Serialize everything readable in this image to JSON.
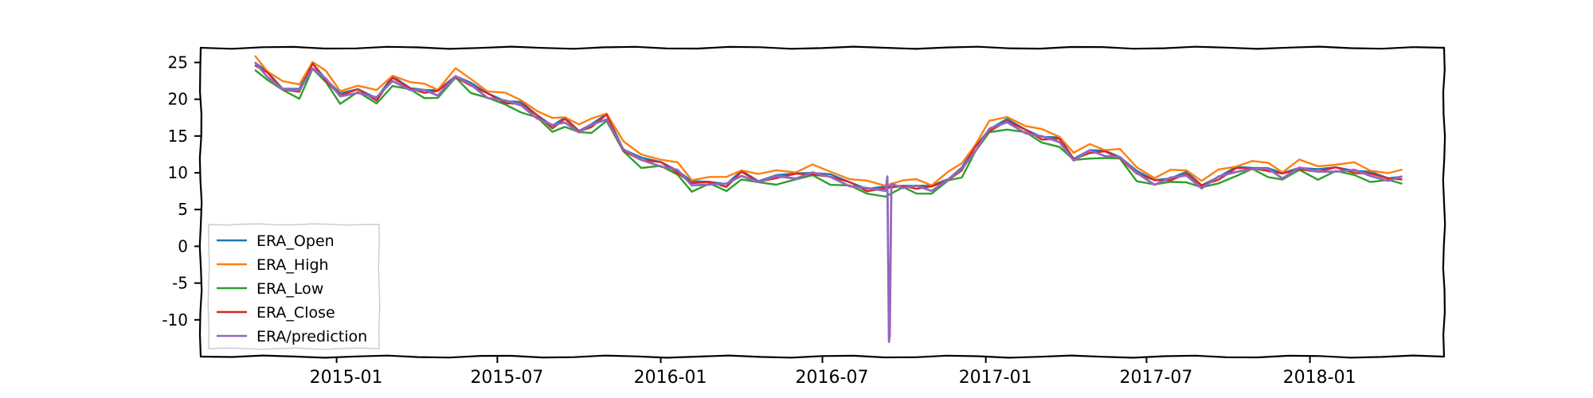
{
  "chart_data": {
    "type": "line",
    "style": "xkcd-like wobbly frame",
    "title": "",
    "xlabel": "",
    "ylabel": "",
    "x_axis": {
      "type": "date",
      "range": [
        "2014-08-01",
        "2018-06-01"
      ],
      "ticks": [
        {
          "value": "2015-01-01",
          "label": "2015-01"
        },
        {
          "value": "2015-07-01",
          "label": "2015-07"
        },
        {
          "value": "2016-01-01",
          "label": "2016-01"
        },
        {
          "value": "2016-07-01",
          "label": "2016-07"
        },
        {
          "value": "2017-01-01",
          "label": "2017-01"
        },
        {
          "value": "2017-07-01",
          "label": "2017-07"
        },
        {
          "value": "2018-01-01",
          "label": "2018-01"
        }
      ]
    },
    "y_axis": {
      "range": [
        -15,
        27
      ],
      "ticks": [
        {
          "value": 25,
          "label": "25"
        },
        {
          "value": 20,
          "label": "20"
        },
        {
          "value": 15,
          "label": "15"
        },
        {
          "value": 10,
          "label": "10"
        },
        {
          "value": 5,
          "label": "5"
        },
        {
          "value": 0,
          "label": "0"
        },
        {
          "value": -5,
          "label": "-5"
        },
        {
          "value": -10,
          "label": "-10"
        }
      ]
    },
    "grid": false,
    "legend": {
      "position": "lower-left",
      "entries": [
        {
          "name": "ERA_Open",
          "color": "#1f77b4"
        },
        {
          "name": "ERA_High",
          "color": "#ff7f0e"
        },
        {
          "name": "ERA_Low",
          "color": "#2ca02c"
        },
        {
          "name": "ERA_Close",
          "color": "#d62728"
        },
        {
          "name": "ERA/prediction",
          "color": "#9467bd"
        }
      ]
    },
    "base_series": {
      "x": [
        "2014-10-01",
        "2014-10-15",
        "2014-11-01",
        "2014-11-20",
        "2014-12-05",
        "2014-12-20",
        "2015-01-05",
        "2015-01-25",
        "2015-02-15",
        "2015-03-05",
        "2015-03-25",
        "2015-04-10",
        "2015-04-25",
        "2015-05-15",
        "2015-06-01",
        "2015-06-20",
        "2015-07-10",
        "2015-07-28",
        "2015-08-15",
        "2015-09-01",
        "2015-09-15",
        "2015-10-01",
        "2015-10-15",
        "2015-11-01",
        "2015-11-20",
        "2015-12-10",
        "2016-01-01",
        "2016-01-20",
        "2016-02-05",
        "2016-02-25",
        "2016-03-15",
        "2016-04-01",
        "2016-04-20",
        "2016-05-10",
        "2016-06-01",
        "2016-06-20",
        "2016-07-10",
        "2016-08-01",
        "2016-08-20",
        "2016-09-10",
        "2016-09-30",
        "2016-10-15",
        "2016-11-01",
        "2016-11-20",
        "2016-12-05",
        "2016-12-20",
        "2017-01-05",
        "2017-01-25",
        "2017-02-15",
        "2017-03-05",
        "2017-03-25",
        "2017-04-10",
        "2017-04-28",
        "2017-05-15",
        "2017-06-01",
        "2017-06-20",
        "2017-07-10",
        "2017-07-28",
        "2017-08-15",
        "2017-09-01",
        "2017-09-20",
        "2017-10-10",
        "2017-10-28",
        "2017-11-15",
        "2017-12-01",
        "2017-12-20",
        "2018-01-10",
        "2018-01-30",
        "2018-02-20",
        "2018-03-10",
        "2018-03-30",
        "2018-04-15"
      ],
      "y": [
        25.0,
        23.5,
        21.8,
        21.2,
        24.8,
        23.0,
        20.5,
        21.5,
        20.3,
        22.8,
        21.8,
        21.2,
        21.0,
        23.5,
        22.0,
        20.8,
        20.0,
        19.3,
        18.0,
        16.5,
        17.2,
        16.0,
        16.5,
        17.8,
        13.5,
        11.8,
        11.5,
        10.5,
        8.5,
        9.0,
        8.5,
        10.0,
        9.2,
        9.5,
        9.8,
        10.3,
        9.5,
        8.8,
        8.0,
        7.8,
        8.5,
        8.2,
        8.0,
        9.5,
        10.5,
        13.5,
        16.2,
        17.0,
        16.0,
        15.0,
        14.5,
        12.2,
        13.0,
        12.8,
        12.5,
        10.0,
        9.0,
        9.5,
        9.8,
        8.5,
        9.5,
        10.5,
        11.0,
        10.5,
        9.8,
        11.0,
        10.2,
        10.8,
        10.5,
        9.8,
        9.5,
        9.5
      ]
    },
    "series": [
      {
        "name": "ERA_Open",
        "color": "#1f77b4",
        "offset": 0.0
      },
      {
        "name": "ERA_High",
        "color": "#ff7f0e",
        "offset": 0.6
      },
      {
        "name": "ERA_Low",
        "color": "#2ca02c",
        "offset": -0.8
      },
      {
        "name": "ERA_Close",
        "color": "#d62728",
        "offset": -0.2
      },
      {
        "name": "ERA/prediction",
        "color": "#9467bd",
        "offset": -0.3,
        "spike": {
          "x": "2016-09-14",
          "y": -13.0
        }
      }
    ]
  }
}
